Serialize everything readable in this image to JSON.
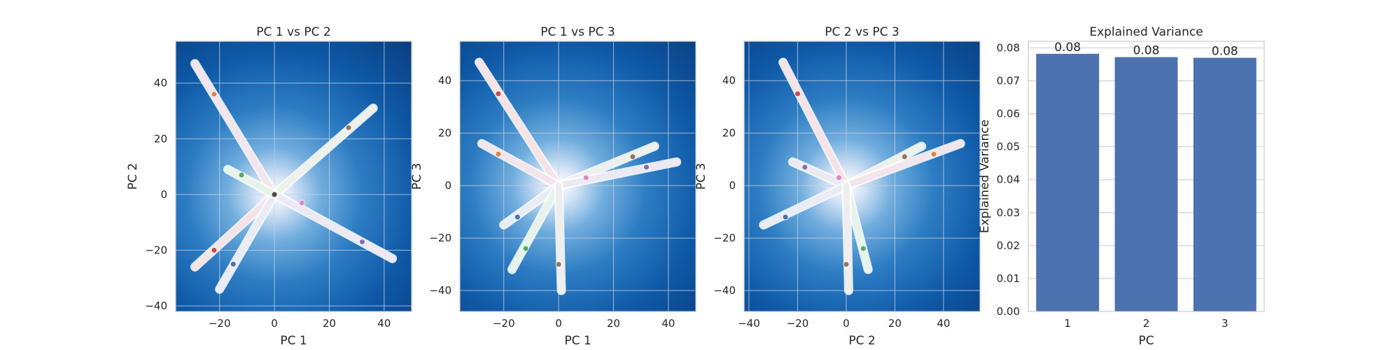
{
  "chart_data": [
    {
      "type": "scatter",
      "title": "PC 1 vs PC 2",
      "xlabel": "PC 1",
      "ylabel": "PC 2",
      "xlim": [
        -36,
        50
      ],
      "ylim": [
        -42,
        55
      ],
      "xticks": [
        -20,
        0,
        20,
        40
      ],
      "yticks": [
        -40,
        -20,
        0,
        20,
        40
      ],
      "xtick_labels": [
        "−20",
        "0",
        "20",
        "40"
      ],
      "ytick_labels": [
        "−40",
        "−20",
        "0",
        "20",
        "40"
      ],
      "grid": true,
      "background": "radial gradient, white at origin to dark blue",
      "trails": [
        {
          "from": [
            0,
            0
          ],
          "to": [
            -29,
            47
          ],
          "tint": "#f3e5ec"
        },
        {
          "from": [
            0,
            0
          ],
          "to": [
            36,
            31
          ],
          "tint": "#eef0ec"
        },
        {
          "from": [
            0,
            0
          ],
          "to": [
            43,
            -23
          ],
          "tint": "#ede9f2"
        },
        {
          "from": [
            0,
            0
          ],
          "to": [
            -29,
            -26
          ],
          "tint": "#f7e3e6"
        },
        {
          "from": [
            0,
            0
          ],
          "to": [
            -20,
            -34
          ],
          "tint": "#e9ecf5"
        },
        {
          "from": [
            0,
            0
          ],
          "to": [
            -17,
            9
          ],
          "tint": "#e6f3ea"
        }
      ],
      "points": [
        {
          "x": -22,
          "y": 36,
          "color": "#dd8452"
        },
        {
          "x": 27,
          "y": 24,
          "color": "#937860"
        },
        {
          "x": 32,
          "y": -17,
          "color": "#8172b3"
        },
        {
          "x": 10,
          "y": -3,
          "color": "#da8bc3"
        },
        {
          "x": -22,
          "y": -20,
          "color": "#c44e52"
        },
        {
          "x": -15,
          "y": -25,
          "color": "#4c72b0"
        },
        {
          "x": -12,
          "y": 7,
          "color": "#55a868"
        },
        {
          "x": 0,
          "y": 0,
          "color": "#4d4d4d"
        }
      ]
    },
    {
      "type": "scatter",
      "title": "PC 1 vs PC 3",
      "xlabel": "PC 1",
      "ylabel": "PC 3",
      "xlim": [
        -36,
        50
      ],
      "ylim": [
        -48,
        55
      ],
      "xticks": [
        -20,
        0,
        20,
        40
      ],
      "yticks": [
        -40,
        -20,
        0,
        20,
        40
      ],
      "xtick_labels": [
        "−20",
        "0",
        "20",
        "40"
      ],
      "ytick_labels": [
        "−40",
        "−20",
        "0",
        "20",
        "40"
      ],
      "grid": true,
      "background": "radial gradient, white at origin to dark blue",
      "trails": [
        {
          "from": [
            0,
            0
          ],
          "to": [
            -29,
            47
          ],
          "tint": "#f7e3e6"
        },
        {
          "from": [
            0,
            0
          ],
          "to": [
            -28,
            16
          ],
          "tint": "#f3e5ec"
        },
        {
          "from": [
            0,
            0
          ],
          "to": [
            35,
            15
          ],
          "tint": "#eef0ec"
        },
        {
          "from": [
            0,
            0
          ],
          "to": [
            43,
            9
          ],
          "tint": "#ede9f2"
        },
        {
          "from": [
            0,
            0
          ],
          "to": [
            -20,
            -15
          ],
          "tint": "#e9ecf5"
        },
        {
          "from": [
            0,
            0
          ],
          "to": [
            -17,
            -32
          ],
          "tint": "#e6f3ea"
        },
        {
          "from": [
            0,
            0
          ],
          "to": [
            1,
            -40
          ],
          "tint": "#eeeeee"
        }
      ],
      "points": [
        {
          "x": -22,
          "y": 35,
          "color": "#c44e52"
        },
        {
          "x": -22,
          "y": 12,
          "color": "#dd8452"
        },
        {
          "x": 27,
          "y": 11,
          "color": "#937860"
        },
        {
          "x": 32,
          "y": 7,
          "color": "#8172b3"
        },
        {
          "x": 10,
          "y": 3,
          "color": "#da8bc3"
        },
        {
          "x": -15,
          "y": -12,
          "color": "#4c72b0"
        },
        {
          "x": -12,
          "y": -24,
          "color": "#55a868"
        },
        {
          "x": 0,
          "y": -30,
          "color": "#937860"
        }
      ]
    },
    {
      "type": "scatter",
      "title": "PC 2 vs PC 3",
      "xlabel": "PC 2",
      "ylabel": "PC 3",
      "xlim": [
        -42,
        55
      ],
      "ylim": [
        -48,
        55
      ],
      "xticks": [
        -40,
        -20,
        0,
        20,
        40
      ],
      "yticks": [
        -40,
        -20,
        0,
        20,
        40
      ],
      "xtick_labels": [
        "−40",
        "−20",
        "0",
        "20",
        "40"
      ],
      "ytick_labels": [
        "−40",
        "−20",
        "0",
        "20",
        "40"
      ],
      "grid": true,
      "background": "radial gradient, white at origin to dark blue",
      "trails": [
        {
          "from": [
            0,
            0
          ],
          "to": [
            -26,
            47
          ],
          "tint": "#f7e3e6"
        },
        {
          "from": [
            0,
            0
          ],
          "to": [
            -22,
            9
          ],
          "tint": "#ede9f2"
        },
        {
          "from": [
            0,
            0
          ],
          "to": [
            31,
            15
          ],
          "tint": "#eef0ec"
        },
        {
          "from": [
            0,
            0
          ],
          "to": [
            47,
            16
          ],
          "tint": "#f3e5ec"
        },
        {
          "from": [
            0,
            0
          ],
          "to": [
            -34,
            -15
          ],
          "tint": "#e9ecf5"
        },
        {
          "from": [
            0,
            0
          ],
          "to": [
            9,
            -32
          ],
          "tint": "#e6f3ea"
        },
        {
          "from": [
            0,
            0
          ],
          "to": [
            1,
            -40
          ],
          "tint": "#eeeeee"
        }
      ],
      "points": [
        {
          "x": -20,
          "y": 35,
          "color": "#c44e52"
        },
        {
          "x": -17,
          "y": 7,
          "color": "#8172b3"
        },
        {
          "x": -3,
          "y": 3,
          "color": "#da8bc3"
        },
        {
          "x": 24,
          "y": 11,
          "color": "#937860"
        },
        {
          "x": 36,
          "y": 12,
          "color": "#dd8452"
        },
        {
          "x": -25,
          "y": -12,
          "color": "#4c72b0"
        },
        {
          "x": 7,
          "y": -24,
          "color": "#55a868"
        },
        {
          "x": 0,
          "y": -30,
          "color": "#937860"
        }
      ]
    },
    {
      "type": "bar",
      "title": "Explained Variance",
      "xlabel": "PC",
      "ylabel": "Explained Variance",
      "categories": [
        "1",
        "2",
        "3"
      ],
      "values": [
        0.0782,
        0.0772,
        0.077
      ],
      "data_labels": [
        "0.08",
        "0.08",
        "0.08"
      ],
      "ylim": [
        0,
        0.082
      ],
      "yticks": [
        0.0,
        0.01,
        0.02,
        0.03,
        0.04,
        0.05,
        0.06,
        0.07,
        0.08
      ],
      "ytick_labels": [
        "0.00",
        "0.01",
        "0.02",
        "0.03",
        "0.04",
        "0.05",
        "0.06",
        "0.07",
        "0.08"
      ],
      "grid": true,
      "bar_color": "#4c72b0"
    }
  ]
}
